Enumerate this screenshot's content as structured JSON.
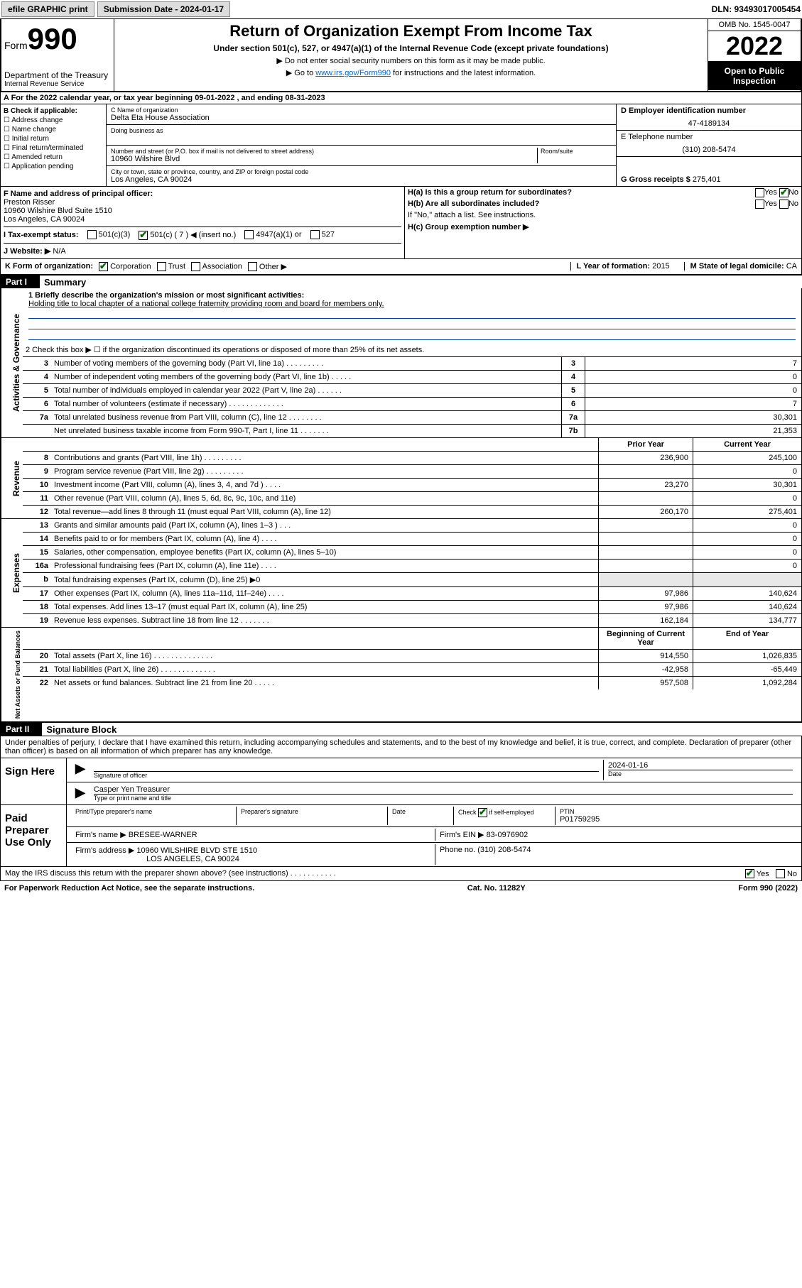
{
  "topbar": {
    "efile": "efile GRAPHIC print",
    "sub_label": "Submission Date - 2024-01-17",
    "dln": "DLN: 93493017005454"
  },
  "header": {
    "form_prefix": "Form",
    "form_no": "990",
    "dept": "Department of the Treasury",
    "irs": "Internal Revenue Service",
    "title": "Return of Organization Exempt From Income Tax",
    "subtitle": "Under section 501(c), 527, or 4947(a)(1) of the Internal Revenue Code (except private foundations)",
    "sub2": "▶ Do not enter social security numbers on this form as it may be made public.",
    "sub3_pre": "▶ Go to ",
    "sub3_link": "www.irs.gov/Form990",
    "sub3_post": " for instructions and the latest information.",
    "omb": "OMB No. 1545-0047",
    "year": "2022",
    "open": "Open to Public Inspection"
  },
  "rowA": "A  For the 2022 calendar year, or tax year beginning 09-01-2022   , and ending 08-31-2023",
  "B": {
    "hdr": "B Check if applicable:",
    "items": [
      "Address change",
      "Name change",
      "Initial return",
      "Final return/terminated",
      "Amended return",
      "Application pending"
    ]
  },
  "C": {
    "name_lbl": "C Name of organization",
    "name": "Delta Eta House Association",
    "dba_lbl": "Doing business as",
    "street_lbl": "Number and street (or P.O. box if mail is not delivered to street address)",
    "room_lbl": "Room/suite",
    "street": "10960 Wilshire Blvd",
    "city_lbl": "City or town, state or province, country, and ZIP or foreign postal code",
    "city": "Los Angeles, CA  90024"
  },
  "D": {
    "lbl": "D Employer identification number",
    "val": "47-4189134"
  },
  "E": {
    "lbl": "E Telephone number",
    "val": "(310) 208-5474"
  },
  "G": {
    "lbl": "G Gross receipts $",
    "val": "275,401"
  },
  "F": {
    "lbl": "F  Name and address of principal officer:",
    "name": "Preston Risser",
    "addr1": "10960 Wilshire Blvd Suite 1510",
    "addr2": "Los Angeles, CA  90024"
  },
  "H": {
    "a": "H(a)  Is this a group return for subordinates?",
    "b": "H(b)  Are all subordinates included?",
    "note": "If \"No,\" attach a list. See instructions.",
    "c": "H(c)  Group exemption number ▶",
    "yes": "Yes",
    "no": "No"
  },
  "I": {
    "lbl": "I   Tax-exempt status:",
    "c3": "501(c)(3)",
    "c": "501(c) ( 7 ) ◀ (insert no.)",
    "a1": "4947(a)(1) or",
    "s527": "527"
  },
  "J": {
    "lbl": "J  Website: ▶",
    "val": "N/A"
  },
  "K": {
    "lbl": "K Form of organization:",
    "corp": "Corporation",
    "trust": "Trust",
    "assoc": "Association",
    "other": "Other ▶"
  },
  "L": {
    "lbl": "L Year of formation:",
    "val": "2015"
  },
  "M": {
    "lbl": "M State of legal domicile:",
    "val": "CA"
  },
  "part1": {
    "hdr": "Part I",
    "title": "Summary",
    "tabs": {
      "gov": "Activities & Governance",
      "rev": "Revenue",
      "exp": "Expenses",
      "net": "Net Assets or Fund Balances"
    },
    "l1_lbl": "1   Briefly describe the organization's mission or most significant activities:",
    "l1_txt": "Holding title to local chapter of a national college fraternity providing room and board for members only.",
    "l2": "2   Check this box ▶ ☐  if the organization discontinued its operations or disposed of more than 25% of its net assets.",
    "rows_gov": [
      {
        "n": "3",
        "d": "Number of voting members of the governing body (Part VI, line 1a)  .  .  .  .  .  .  .  .  .",
        "b": "3",
        "v": "7"
      },
      {
        "n": "4",
        "d": "Number of independent voting members of the governing body (Part VI, line 1b)  .  .  .  .  .",
        "b": "4",
        "v": "0"
      },
      {
        "n": "5",
        "d": "Total number of individuals employed in calendar year 2022 (Part V, line 2a)  .  .  .  .  .  .",
        "b": "5",
        "v": "0"
      },
      {
        "n": "6",
        "d": "Total number of volunteers (estimate if necessary)  .  .  .  .  .  .  .  .  .  .  .  .  .",
        "b": "6",
        "v": "7"
      },
      {
        "n": "7a",
        "d": "Total unrelated business revenue from Part VIII, column (C), line 12  .  .  .  .  .  .  .  .",
        "b": "7a",
        "v": "30,301"
      },
      {
        "n": "",
        "d": "Net unrelated business taxable income from Form 990-T, Part I, line 11  .  .  .  .  .  .  .",
        "b": "7b",
        "v": "21,353"
      }
    ],
    "hdr_prior": "Prior Year",
    "hdr_curr": "Current Year",
    "rows_rev": [
      {
        "n": "8",
        "d": "Contributions and grants (Part VIII, line 1h)  .  .  .  .  .  .  .  .  .",
        "p": "236,900",
        "c": "245,100"
      },
      {
        "n": "9",
        "d": "Program service revenue (Part VIII, line 2g)  .  .  .  .  .  .  .  .  .",
        "p": "",
        "c": "0"
      },
      {
        "n": "10",
        "d": "Investment income (Part VIII, column (A), lines 3, 4, and 7d )  .  .  .  .",
        "p": "23,270",
        "c": "30,301"
      },
      {
        "n": "11",
        "d": "Other revenue (Part VIII, column (A), lines 5, 6d, 8c, 9c, 10c, and 11e)",
        "p": "",
        "c": "0"
      },
      {
        "n": "12",
        "d": "Total revenue—add lines 8 through 11 (must equal Part VIII, column (A), line 12)",
        "p": "260,170",
        "c": "275,401"
      }
    ],
    "rows_exp": [
      {
        "n": "13",
        "d": "Grants and similar amounts paid (Part IX, column (A), lines 1–3 )  .  .  .",
        "p": "",
        "c": "0"
      },
      {
        "n": "14",
        "d": "Benefits paid to or for members (Part IX, column (A), line 4)  .  .  .  .",
        "p": "",
        "c": "0"
      },
      {
        "n": "15",
        "d": "Salaries, other compensation, employee benefits (Part IX, column (A), lines 5–10)",
        "p": "",
        "c": "0"
      },
      {
        "n": "16a",
        "d": "Professional fundraising fees (Part IX, column (A), line 11e)  .  .  .  .",
        "p": "",
        "c": "0"
      },
      {
        "n": "b",
        "d": "Total fundraising expenses (Part IX, column (D), line 25) ▶0",
        "p": null,
        "c": null
      },
      {
        "n": "17",
        "d": "Other expenses (Part IX, column (A), lines 11a–11d, 11f–24e)  .  .  .  .",
        "p": "97,986",
        "c": "140,624"
      },
      {
        "n": "18",
        "d": "Total expenses. Add lines 13–17 (must equal Part IX, column (A), line 25)",
        "p": "97,986",
        "c": "140,624"
      },
      {
        "n": "19",
        "d": "Revenue less expenses. Subtract line 18 from line 12  .  .  .  .  .  .  .",
        "p": "162,184",
        "c": "134,777"
      }
    ],
    "hdr_beg": "Beginning of Current Year",
    "hdr_end": "End of Year",
    "rows_net": [
      {
        "n": "20",
        "d": "Total assets (Part X, line 16)  .  .  .  .  .  .  .  .  .  .  .  .  .  .",
        "p": "914,550",
        "c": "1,026,835"
      },
      {
        "n": "21",
        "d": "Total liabilities (Part X, line 26)  .  .  .  .  .  .  .  .  .  .  .  .  .",
        "p": "-42,958",
        "c": "-65,449"
      },
      {
        "n": "22",
        "d": "Net assets or fund balances. Subtract line 21 from line 20  .  .  .  .  .",
        "p": "957,508",
        "c": "1,092,284"
      }
    ]
  },
  "part2": {
    "hdr": "Part II",
    "title": "Signature Block",
    "decl": "Under penalties of perjury, I declare that I have examined this return, including accompanying schedules and statements, and to the best of my knowledge and belief, it is true, correct, and complete. Declaration of preparer (other than officer) is based on all information of which preparer has any knowledge.",
    "sign_here": "Sign Here",
    "sig_officer": "Signature of officer",
    "date": "Date",
    "sig_date": "2024-01-16",
    "name_title": "Casper Yen Treasurer",
    "type_name": "Type or print name and title",
    "paid": "Paid Preparer Use Only",
    "prep_name_lbl": "Print/Type preparer's name",
    "prep_sig_lbl": "Preparer's signature",
    "date_lbl": "Date",
    "check_self": "Check ☑ if self-employed",
    "ptin_lbl": "PTIN",
    "ptin": "P01759295",
    "firm_name_lbl": "Firm's name   ▶",
    "firm_name": "BRESEE-WARNER",
    "firm_ein_lbl": "Firm's EIN ▶",
    "firm_ein": "83-0976902",
    "firm_addr_lbl": "Firm's address ▶",
    "firm_addr1": "10960 WILSHIRE BLVD STE 1510",
    "firm_addr2": "LOS ANGELES, CA  90024",
    "phone_lbl": "Phone no.",
    "phone": "(310) 208-5474",
    "may_irs": "May the IRS discuss this return with the preparer shown above? (see instructions)  .  .  .  .  .  .  .  .  .  .  .",
    "yes": "Yes",
    "no": "No"
  },
  "footer": {
    "pra": "For Paperwork Reduction Act Notice, see the separate instructions.",
    "cat": "Cat. No. 11282Y",
    "form": "Form 990 (2022)"
  }
}
